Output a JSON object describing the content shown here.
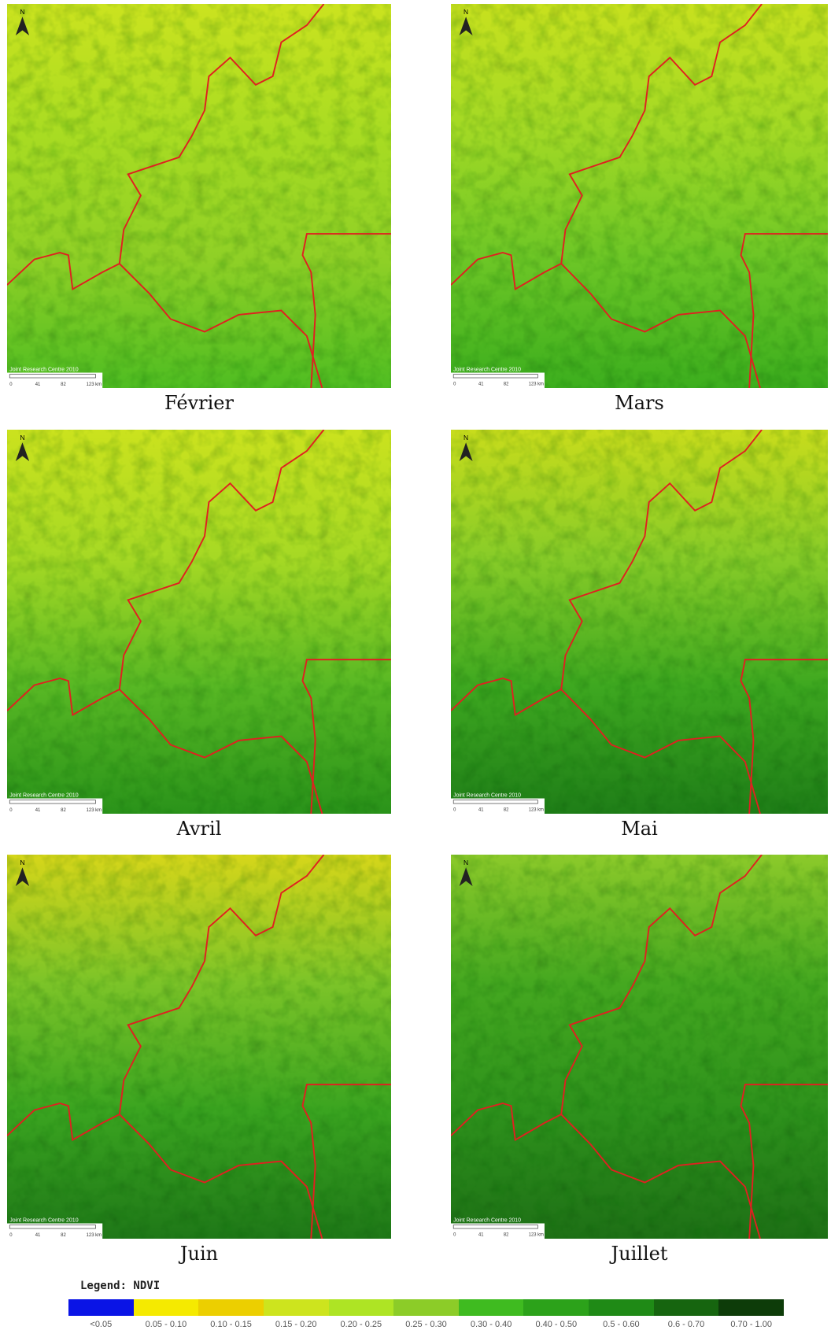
{
  "panels": [
    {
      "label": "Février"
    },
    {
      "label": "Mars"
    },
    {
      "label": "Avril"
    },
    {
      "label": "Mai"
    },
    {
      "label": "Juin"
    },
    {
      "label": "Juillet"
    }
  ],
  "map_text": {
    "north": "N",
    "attribution": "Joint Research Centre 2010",
    "scale_labels": [
      "0",
      "41",
      "82",
      "123 km"
    ]
  },
  "legend": {
    "title": "Legend: NDVI",
    "items": [
      {
        "label": "<0.05",
        "color": "#0a14e6"
      },
      {
        "label": "0.05 - 0.10",
        "color": "#f5ea00"
      },
      {
        "label": "0.10 - 0.15",
        "color": "#eccf00"
      },
      {
        "label": "0.15 - 0.20",
        "color": "#cde41e"
      },
      {
        "label": "0.20 - 0.25",
        "color": "#aee424"
      },
      {
        "label": "0.25 - 0.30",
        "color": "#8ccc28"
      },
      {
        "label": "0.30 - 0.40",
        "color": "#3fbb20"
      },
      {
        "label": "0.40 - 0.50",
        "color": "#2ca21a"
      },
      {
        "label": "0.5 - 0.60",
        "color": "#1f8a16"
      },
      {
        "label": "0.6 - 0.70",
        "color": "#16650f"
      },
      {
        "label": "0.70 - 1.00",
        "color": "#0d3c09"
      }
    ]
  }
}
